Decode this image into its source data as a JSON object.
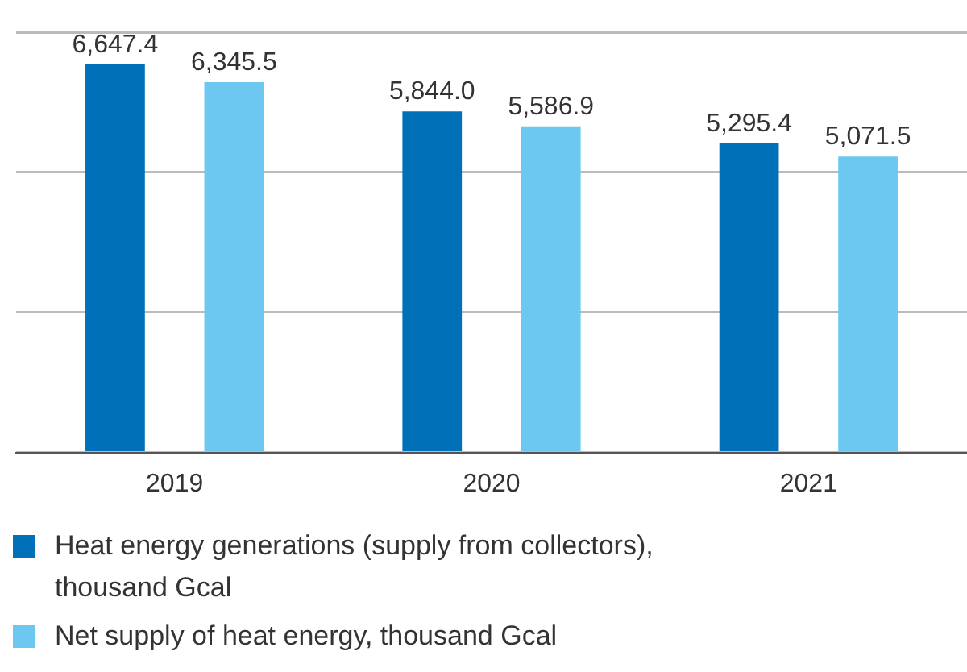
{
  "chart_data": {
    "type": "bar",
    "categories": [
      "2019",
      "2020",
      "2021"
    ],
    "series": [
      {
        "name": "Heat energy generations (supply from collectors), thousand Gcal",
        "color": "#0070b8",
        "values": [
          6647.4,
          5844.0,
          5295.4
        ],
        "value_labels": [
          "6,647.4",
          "5,844.0",
          "5,295.4"
        ]
      },
      {
        "name": "Net supply of heat energy, thousand Gcal",
        "color": "#6cc8f0",
        "values": [
          6345.5,
          5586.9,
          5071.5
        ],
        "value_labels": [
          "6,345.5",
          "5,586.9",
          "5,071.5"
        ]
      }
    ],
    "ylim": [
      0,
      7200
    ],
    "yticks": [
      {
        "value": 0,
        "label": null
      },
      {
        "value": 2400,
        "label": null
      },
      {
        "value": 4800,
        "label": null
      },
      {
        "value": 7200,
        "label": null
      }
    ],
    "grid": "y",
    "legend": "bottom",
    "tick_labels": "x"
  }
}
